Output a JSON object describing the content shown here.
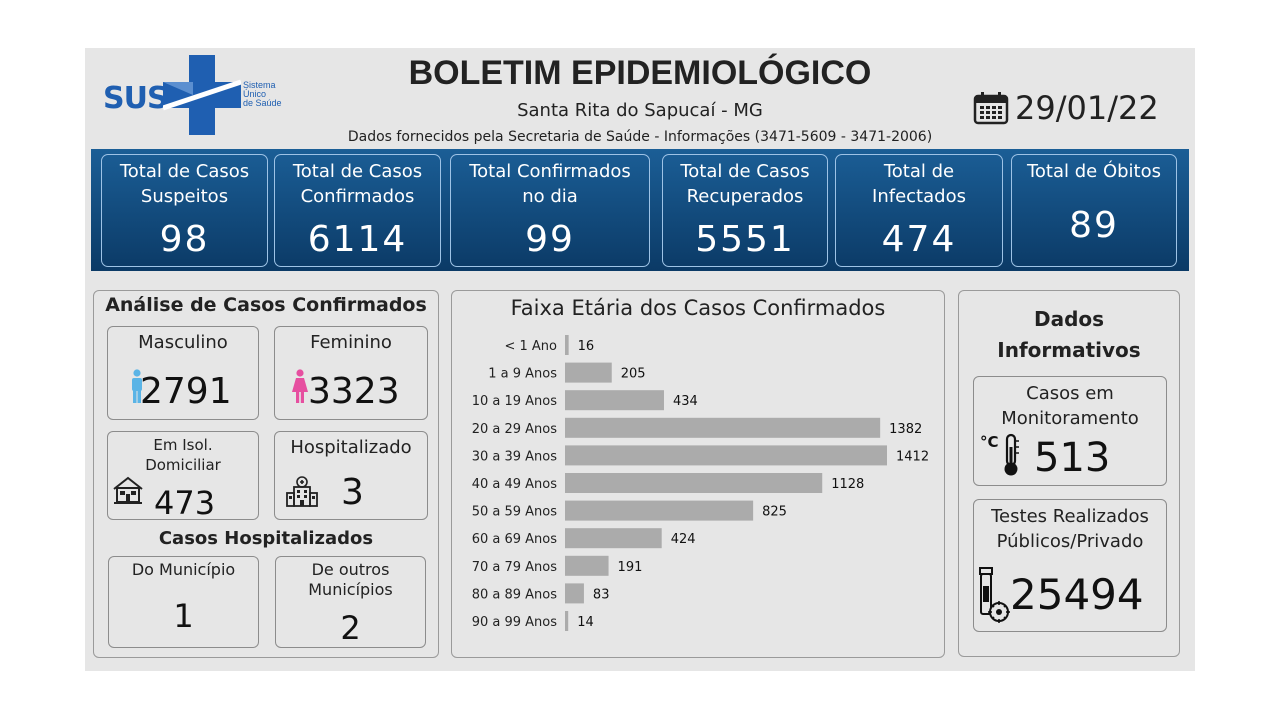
{
  "header": {
    "logo_text": "SUS",
    "logo_sub": [
      "Sistema",
      "Único",
      "de Saúde"
    ],
    "title": "BOLETIM EPIDEMIOLÓGICO",
    "subtitle": "Santa Rita do Sapucaí - MG",
    "source": "Dados fornecidos pela Secretaria de Saúde - Informações (3471-5609 - 3471-2006)",
    "date": "29/01/22",
    "date_icon": "calendar-icon"
  },
  "kpis": [
    {
      "label_1": "Total de Casos",
      "label_2": "Suspeitos",
      "value": "98"
    },
    {
      "label_1": "Total de Casos",
      "label_2": "Confirmados",
      "value": "6114"
    },
    {
      "label_1": "Total Confirmados",
      "label_2": "no dia",
      "value": "99"
    },
    {
      "label_1": "Total de Casos",
      "label_2": "Recuperados",
      "value": "5551"
    },
    {
      "label_1": "Total de",
      "label_2": "Infectados",
      "value": "474"
    },
    {
      "label_1": "Total de Óbitos",
      "label_2": "",
      "value": "89"
    }
  ],
  "analysis": {
    "title": "Análise de Casos Confirmados",
    "male": {
      "label": "Masculino",
      "value": "2791",
      "icon": "male-icon"
    },
    "female": {
      "label": "Feminino",
      "value": "3323",
      "icon": "female-icon"
    },
    "isolation": {
      "label_1": "Em Isol.",
      "label_2": "Domiciliar",
      "value": "473",
      "icon": "house-icon"
    },
    "hospitalized": {
      "label": "Hospitalizado",
      "value": "3",
      "icon": "hospital-icon"
    },
    "hosp_title": "Casos Hospitalizados",
    "municipality": {
      "label": "Do Município",
      "value": "1"
    },
    "other": {
      "label_1": "De outros",
      "label_2": "Municípios",
      "value": "2"
    }
  },
  "chart_data": {
    "type": "bar",
    "orientation": "horizontal",
    "title": "Faixa Etária dos Casos Confirmados",
    "categories": [
      "< 1 Ano",
      "1 a 9 Anos",
      "10 a 19 Anos",
      "20 a 29 Anos",
      "30 a 39 Anos",
      "40 a 49 Anos",
      "50 a 59 Anos",
      "60 a 69 Anos",
      "70 a 79 Anos",
      "80 a 89 Anos",
      "90 a 99 Anos"
    ],
    "values": [
      16,
      205,
      434,
      1382,
      1412,
      1128,
      825,
      424,
      191,
      83,
      14
    ],
    "data_labels": true,
    "grid": false,
    "legend": "none",
    "bar_color": "#ababab"
  },
  "info": {
    "title_1": "Dados",
    "title_2": "Informativos",
    "monitoring": {
      "label_1": "Casos em",
      "label_2": "Monitoramento",
      "value": "513",
      "icon": "thermometer-icon",
      "unit": "°C"
    },
    "tests": {
      "label_1": "Testes Realizados",
      "label_2": "Públicos/Privado",
      "value": "25494",
      "icon": "test-tube-virus-icon"
    }
  },
  "colors": {
    "band_top": "#1b5e96",
    "band_bottom": "#0b3a66",
    "sus_blue": "#1f5fb1",
    "male": "#5ab4e6",
    "female": "#e64fa0"
  }
}
